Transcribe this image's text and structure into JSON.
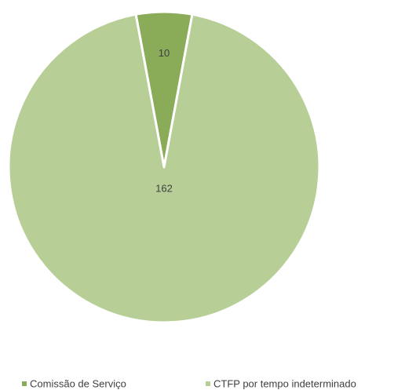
{
  "chart_data": {
    "type": "pie",
    "categories": [
      "Comissão de Serviço",
      "CTFP por tempo indeterminado"
    ],
    "values": [
      10,
      162
    ],
    "colors": [
      "#8aab58",
      "#b7cf97"
    ]
  }
}
